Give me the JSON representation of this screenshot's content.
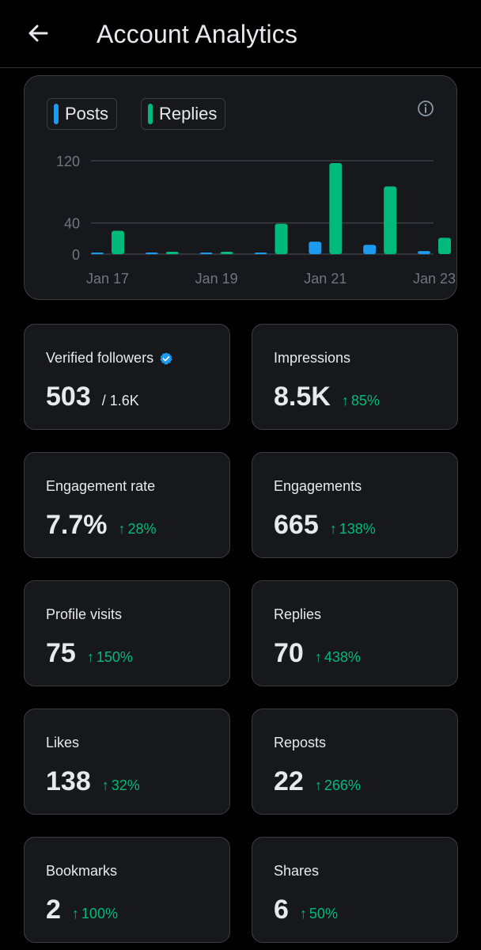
{
  "header": {
    "title": "Account Analytics"
  },
  "chart": {
    "legend": {
      "posts_label": "Posts",
      "replies_label": "Replies"
    },
    "colors": {
      "posts": "#1d9bf0",
      "replies": "#00ba7c"
    }
  },
  "chart_data": {
    "type": "bar",
    "categories": [
      "Jan 17",
      "Jan 18",
      "Jan 19",
      "Jan 20",
      "Jan 21",
      "Jan 22",
      "Jan 23"
    ],
    "x_tick_labels": [
      "Jan 17",
      "Jan 19",
      "Jan 21",
      "Jan 23"
    ],
    "y_ticks": [
      0,
      40,
      120
    ],
    "ylim": [
      0,
      120
    ],
    "series": [
      {
        "name": "Posts",
        "values": [
          1,
          0,
          0,
          1,
          16,
          12,
          4
        ]
      },
      {
        "name": "Replies",
        "values": [
          30,
          3,
          3,
          39,
          117,
          87,
          21
        ]
      }
    ],
    "grid": true,
    "legend_position": "top-left"
  },
  "stats": [
    {
      "label": "Verified followers",
      "value": "503",
      "sub": "/ 1.6K",
      "verified": true
    },
    {
      "label": "Impressions",
      "value": "8.5K",
      "change": "85%"
    },
    {
      "label": "Engagement rate",
      "value": "7.7%",
      "change": "28%"
    },
    {
      "label": "Engagements",
      "value": "665",
      "change": "138%"
    },
    {
      "label": "Profile visits",
      "value": "75",
      "change": "150%"
    },
    {
      "label": "Replies",
      "value": "70",
      "change": "438%"
    },
    {
      "label": "Likes",
      "value": "138",
      "change": "32%"
    },
    {
      "label": "Reposts",
      "value": "22",
      "change": "266%"
    },
    {
      "label": "Bookmarks",
      "value": "2",
      "change": "100%"
    },
    {
      "label": "Shares",
      "value": "6",
      "change": "50%"
    }
  ]
}
